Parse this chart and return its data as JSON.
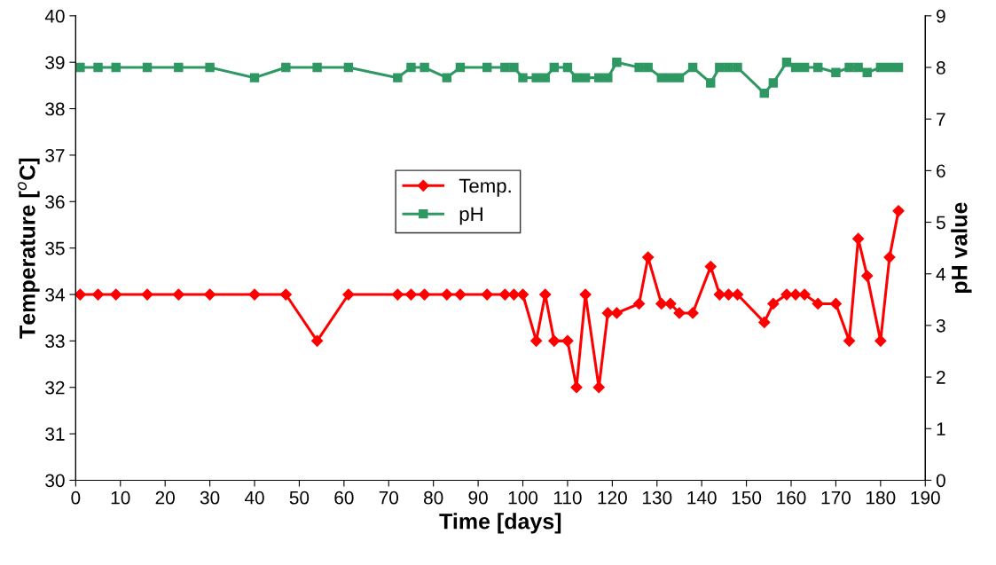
{
  "chart_data": {
    "type": "line",
    "xlabel": "Time [days]",
    "ylabel": "Temperature [$^{o}$C]",
    "y2label": "pH value",
    "x": [
      1,
      5,
      9,
      16,
      23,
      30,
      40,
      47,
      54,
      61,
      72,
      75,
      78,
      83,
      86,
      92,
      96,
      98,
      100,
      103,
      105,
      107,
      110,
      112,
      114,
      117,
      119,
      121,
      126,
      128,
      131,
      133,
      135,
      138,
      142,
      144,
      146,
      148,
      154,
      156,
      159,
      161,
      163,
      166,
      170,
      173,
      175,
      177,
      180,
      182,
      184
    ],
    "series": [
      {
        "name": "Temp.",
        "color": "#ff0000",
        "marker": "diamond",
        "values": [
          34,
          34,
          34,
          34,
          34,
          34,
          34,
          34,
          33,
          34,
          34,
          34,
          34,
          34,
          34,
          34,
          34,
          34,
          34,
          33,
          34,
          33,
          33,
          32,
          34,
          32,
          33.6,
          33.6,
          33.8,
          34.8,
          33.8,
          33.8,
          33.6,
          33.6,
          34.6,
          34,
          34,
          34,
          33.4,
          33.8,
          34,
          34,
          34,
          33.8,
          33.8,
          33,
          35.2,
          34.4,
          33,
          34.8,
          35.8
        ]
      },
      {
        "name": "pH",
        "color": "#2e9862",
        "marker": "square",
        "axis": "y2",
        "values": [
          8,
          8,
          8,
          8,
          8,
          8,
          7.8,
          8,
          8,
          8,
          7.8,
          8,
          8,
          7.8,
          8,
          8,
          8,
          8,
          7.8,
          7.8,
          7.8,
          8,
          8,
          7.8,
          7.8,
          7.8,
          7.8,
          8.1,
          8,
          8,
          7.8,
          7.8,
          7.8,
          8,
          7.7,
          8,
          8,
          8,
          7.5,
          7.7,
          8.1,
          8,
          8,
          8,
          7.9,
          8,
          8,
          7.9,
          8,
          8,
          8
        ]
      }
    ],
    "xlim": [
      0,
      190
    ],
    "xticks": [
      0,
      10,
      20,
      30,
      40,
      50,
      60,
      70,
      80,
      90,
      100,
      110,
      120,
      130,
      140,
      150,
      160,
      170,
      180,
      190
    ],
    "ylim": [
      30,
      40
    ],
    "yticks": [
      30,
      31,
      32,
      33,
      34,
      35,
      36,
      37,
      38,
      39,
      40
    ],
    "y2lim": [
      0,
      9
    ],
    "y2ticks": [
      0,
      1,
      2,
      3,
      4,
      5,
      6,
      7,
      8,
      9
    ],
    "grid": false,
    "legend": "center",
    "line_style": "solid"
  }
}
